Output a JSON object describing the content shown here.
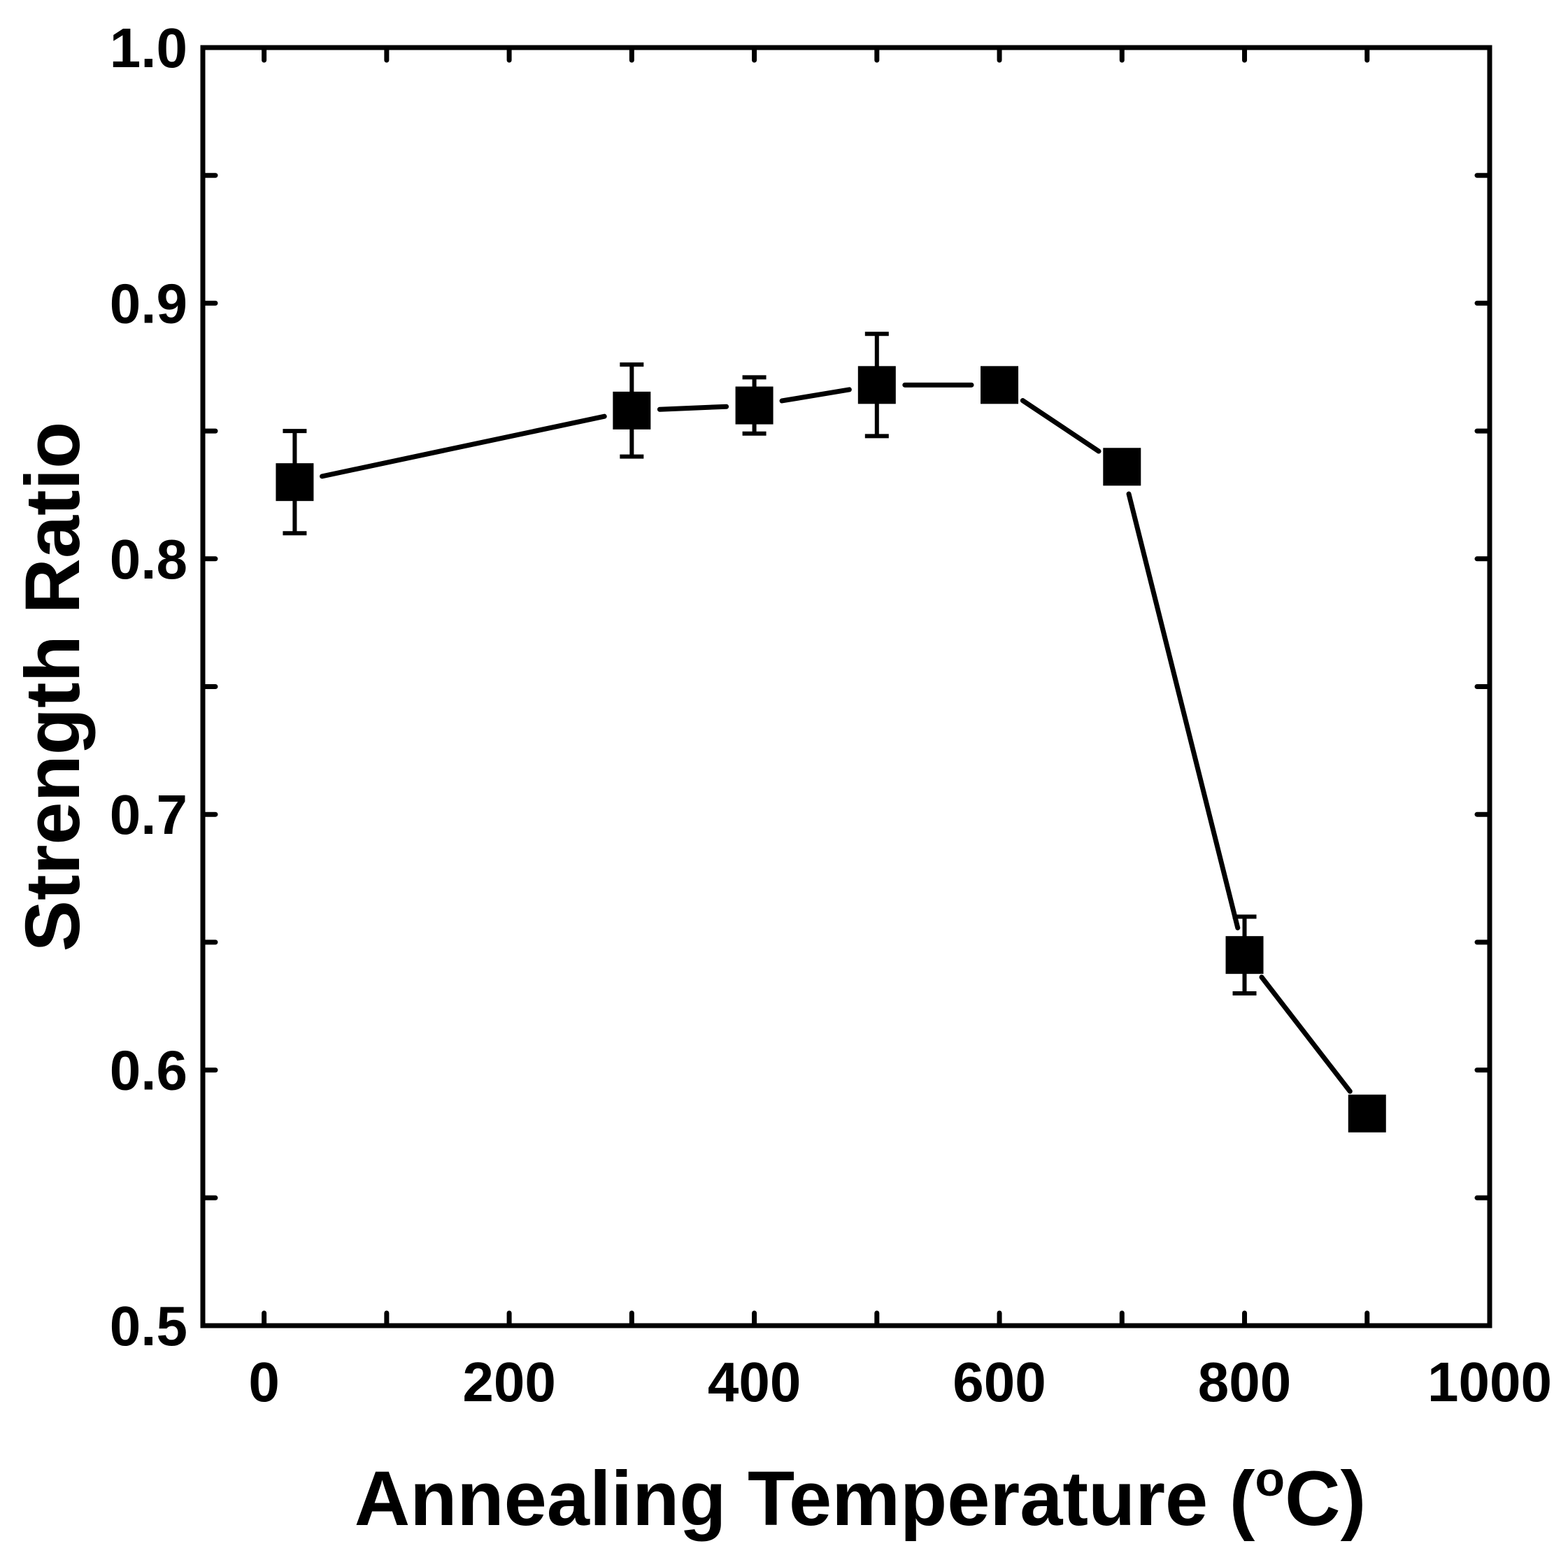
{
  "chart_data": {
    "type": "line",
    "title": "",
    "xlabel": "Annealing Temperature (",
    "xlabel_degree": "o",
    "xlabel_unit": "C)",
    "ylabel": "Strength Ratio",
    "xlim": [
      -50,
      1000
    ],
    "ylim": [
      0.5,
      1.0
    ],
    "grid": false,
    "marker": "square",
    "line_color": "#000000",
    "x_ticks": [
      0,
      200,
      400,
      600,
      800,
      1000
    ],
    "x_tick_labels": [
      "0",
      "200",
      "400",
      "600",
      "800",
      "1000"
    ],
    "x_minor_ticks": [
      100,
      300,
      500,
      700,
      900
    ],
    "y_ticks": [
      0.5,
      0.6,
      0.7,
      0.8,
      0.9,
      1.0
    ],
    "y_tick_labels": [
      "0.5",
      "0.6",
      "0.7",
      "0.8",
      "0.9",
      "1.0"
    ],
    "y_minor_ticks": [
      0.55,
      0.65,
      0.75,
      0.85,
      0.95
    ],
    "series": [
      {
        "name": "Strength Ratio",
        "x": [
          25,
          300,
          400,
          500,
          600,
          700,
          800,
          900
        ],
        "y": [
          0.83,
          0.858,
          0.86,
          0.868,
          0.868,
          0.836,
          0.645,
          0.583
        ],
        "err": [
          0.02,
          0.018,
          0.011,
          0.02,
          0.005,
          0.004,
          0.015,
          0.005
        ]
      }
    ]
  }
}
